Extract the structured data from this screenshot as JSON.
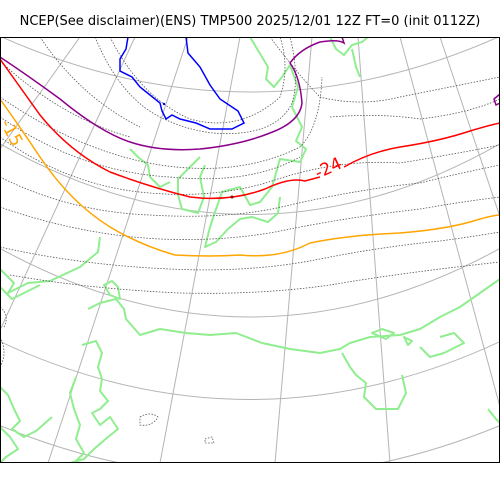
{
  "map": {
    "title": "NCEP(See disclaimer)(ENS) TMP500 2025/12/01 12Z FT=0 (init 0112Z)",
    "contour_labels": [
      {
        "text": "-24",
        "color": "#ff0000"
      },
      {
        "text": "-15",
        "color": "#ffa500"
      }
    ],
    "colors": {
      "background": "#ffffff",
      "graticule": "#b4b4b4",
      "coastline": "#90ee90",
      "isotherm_dashed": "#555555",
      "isotherm_purple": "#8b008b",
      "isotherm_blue": "#0000ff",
      "isotherm_red": "#ff0000",
      "isotherm_orange": "#ffa500"
    }
  }
}
